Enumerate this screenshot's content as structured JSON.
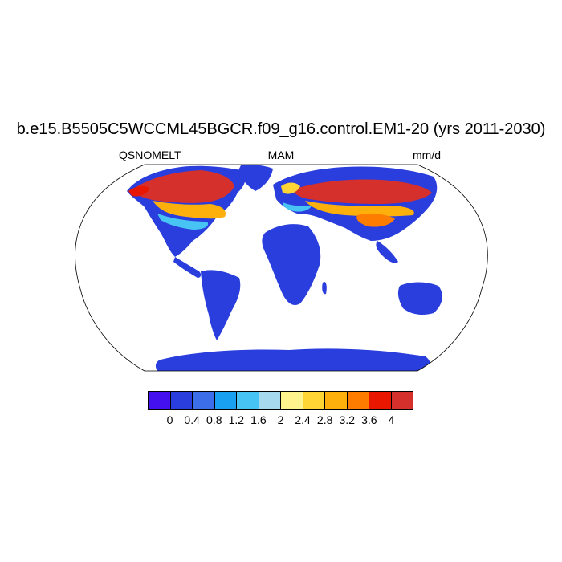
{
  "title": "b.e15.B5505C5WCCML45BGCR.f09_g16.control.EM1-20 (yrs 2011-2030)",
  "left_label": "QSNOMELT",
  "center_label": "MAM",
  "right_label": "mm/d",
  "colorbar": {
    "colors": [
      "#4411ee",
      "#2a3edd",
      "#3b6ee8",
      "#1aa0f0",
      "#48c4f4",
      "#a6d8ee",
      "#fef38c",
      "#fed535",
      "#fdb00b",
      "#fe7c00",
      "#ea1700",
      "#d5302c"
    ],
    "ticks": [
      "0",
      "0.4",
      "0.8",
      "1.2",
      "1.6",
      "2",
      "2.4",
      "2.8",
      "3.2",
      "3.6",
      "4"
    ]
  },
  "map": {
    "projection": "Robinson",
    "ocean_color": "#ffffff",
    "land_base_color": "#2a3edd"
  }
}
